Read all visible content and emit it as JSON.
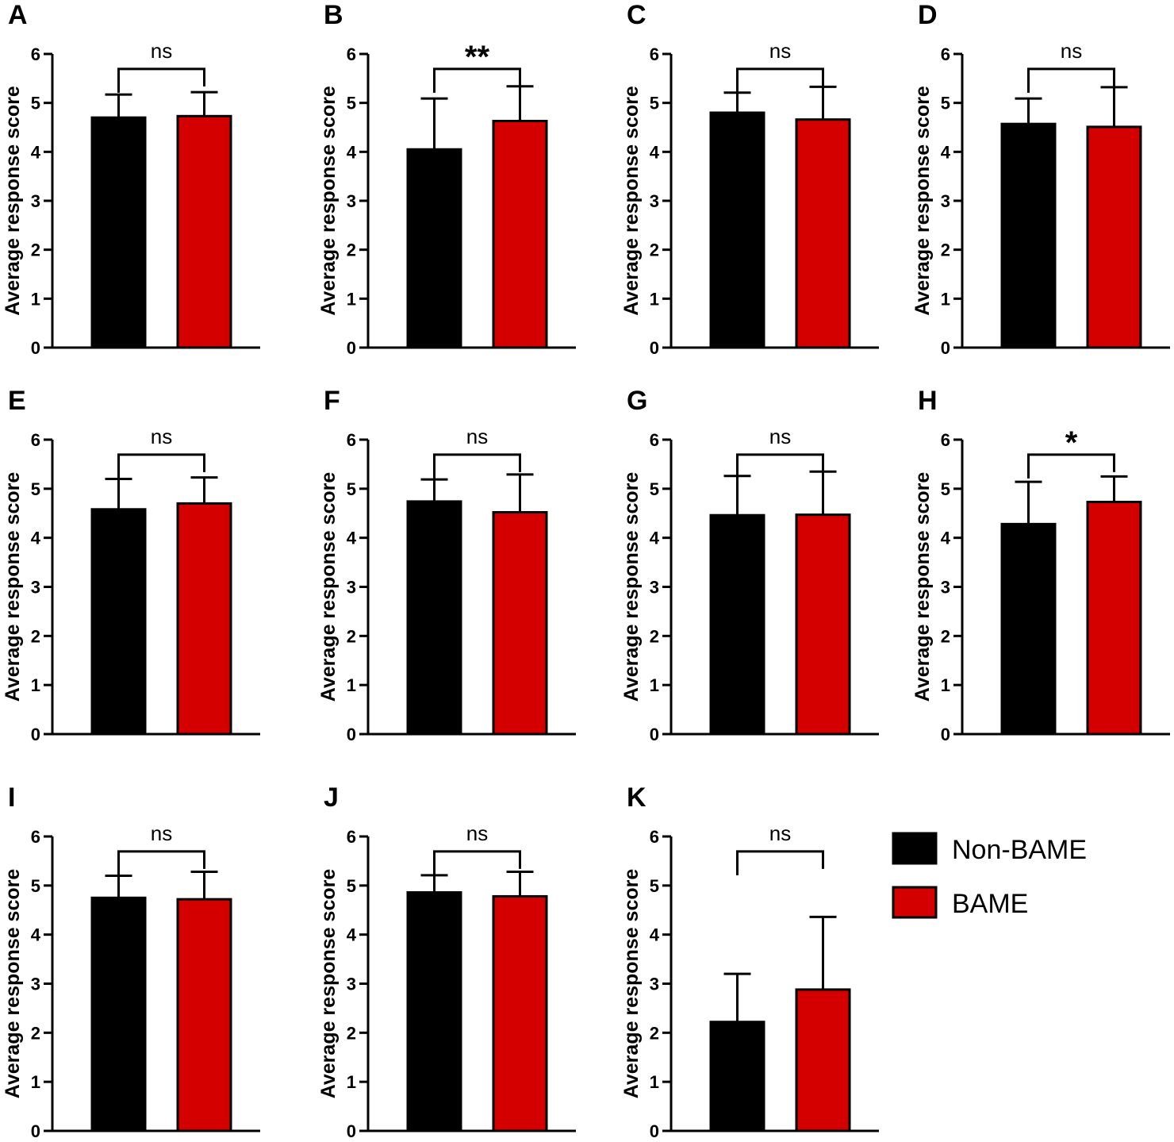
{
  "colors": {
    "Non-BAME": "#000000",
    "BAME": "#d40000"
  },
  "legend": [
    {
      "label": "Non-BAME",
      "color": "#000000"
    },
    {
      "label": "BAME",
      "color": "#d40000"
    }
  ],
  "chart_data": [
    {
      "type": "bar",
      "panel": "A",
      "ylabel": "Average response score",
      "ylim": [
        0,
        6
      ],
      "yticks": [
        0,
        1,
        2,
        3,
        4,
        5,
        6
      ],
      "grid": false,
      "categories": [
        "Non-BAME",
        "BAME"
      ],
      "values": [
        4.7,
        4.73
      ],
      "error": [
        0.47,
        0.49
      ],
      "significance": "ns"
    },
    {
      "type": "bar",
      "panel": "B",
      "ylabel": "Average response score",
      "ylim": [
        0,
        6
      ],
      "yticks": [
        0,
        1,
        2,
        3,
        4,
        5,
        6
      ],
      "grid": false,
      "categories": [
        "Non-BAME",
        "BAME"
      ],
      "values": [
        4.05,
        4.63
      ],
      "error": [
        1.04,
        0.71
      ],
      "significance": "**"
    },
    {
      "type": "bar",
      "panel": "C",
      "ylabel": "Average response score",
      "ylim": [
        0,
        6
      ],
      "yticks": [
        0,
        1,
        2,
        3,
        4,
        5,
        6
      ],
      "grid": false,
      "categories": [
        "Non-BAME",
        "BAME"
      ],
      "values": [
        4.8,
        4.66
      ],
      "error": [
        0.41,
        0.67
      ],
      "significance": "ns"
    },
    {
      "type": "bar",
      "panel": "D",
      "ylabel": "Average response score",
      "ylim": [
        0,
        6
      ],
      "yticks": [
        0,
        1,
        2,
        3,
        4,
        5,
        6
      ],
      "grid": false,
      "categories": [
        "Non-BAME",
        "BAME"
      ],
      "values": [
        4.57,
        4.51
      ],
      "error": [
        0.52,
        0.81
      ],
      "significance": "ns"
    },
    {
      "type": "bar",
      "panel": "E",
      "ylabel": "Average response score",
      "ylim": [
        0,
        6
      ],
      "yticks": [
        0,
        1,
        2,
        3,
        4,
        5,
        6
      ],
      "grid": false,
      "categories": [
        "Non-BAME",
        "BAME"
      ],
      "values": [
        4.58,
        4.7
      ],
      "error": [
        0.62,
        0.53
      ],
      "significance": "ns"
    },
    {
      "type": "bar",
      "panel": "F",
      "ylabel": "Average response score",
      "ylim": [
        0,
        6
      ],
      "yticks": [
        0,
        1,
        2,
        3,
        4,
        5,
        6
      ],
      "grid": false,
      "categories": [
        "Non-BAME",
        "BAME"
      ],
      "values": [
        4.74,
        4.52
      ],
      "error": [
        0.45,
        0.77
      ],
      "significance": "ns"
    },
    {
      "type": "bar",
      "panel": "G",
      "ylabel": "Average response score",
      "ylim": [
        0,
        6
      ],
      "yticks": [
        0,
        1,
        2,
        3,
        4,
        5,
        6
      ],
      "grid": false,
      "categories": [
        "Non-BAME",
        "BAME"
      ],
      "values": [
        4.46,
        4.47
      ],
      "error": [
        0.8,
        0.88
      ],
      "significance": "ns"
    },
    {
      "type": "bar",
      "panel": "H",
      "ylabel": "Average response score",
      "ylim": [
        0,
        6
      ],
      "yticks": [
        0,
        1,
        2,
        3,
        4,
        5,
        6
      ],
      "grid": false,
      "categories": [
        "Non-BAME",
        "BAME"
      ],
      "values": [
        4.28,
        4.73
      ],
      "error": [
        0.86,
        0.52
      ],
      "significance": "*"
    },
    {
      "type": "bar",
      "panel": "I",
      "ylabel": "Average response score",
      "ylim": [
        0,
        6
      ],
      "yticks": [
        0,
        1,
        2,
        3,
        4,
        5,
        6
      ],
      "grid": false,
      "categories": [
        "Non-BAME",
        "BAME"
      ],
      "values": [
        4.75,
        4.72
      ],
      "error": [
        0.45,
        0.56
      ],
      "significance": "ns"
    },
    {
      "type": "bar",
      "panel": "J",
      "ylabel": "Average response score",
      "ylim": [
        0,
        6
      ],
      "yticks": [
        0,
        1,
        2,
        3,
        4,
        5,
        6
      ],
      "grid": false,
      "categories": [
        "Non-BAME",
        "BAME"
      ],
      "values": [
        4.86,
        4.78
      ],
      "error": [
        0.35,
        0.5
      ],
      "significance": "ns"
    },
    {
      "type": "bar",
      "panel": "K",
      "ylabel": "Average response score",
      "ylim": [
        0,
        6
      ],
      "yticks": [
        0,
        1,
        2,
        3,
        4,
        5,
        6
      ],
      "grid": false,
      "categories": [
        "Non-BAME",
        "BAME"
      ],
      "values": [
        2.22,
        2.88
      ],
      "error": [
        0.98,
        1.48
      ],
      "significance": "ns"
    }
  ]
}
